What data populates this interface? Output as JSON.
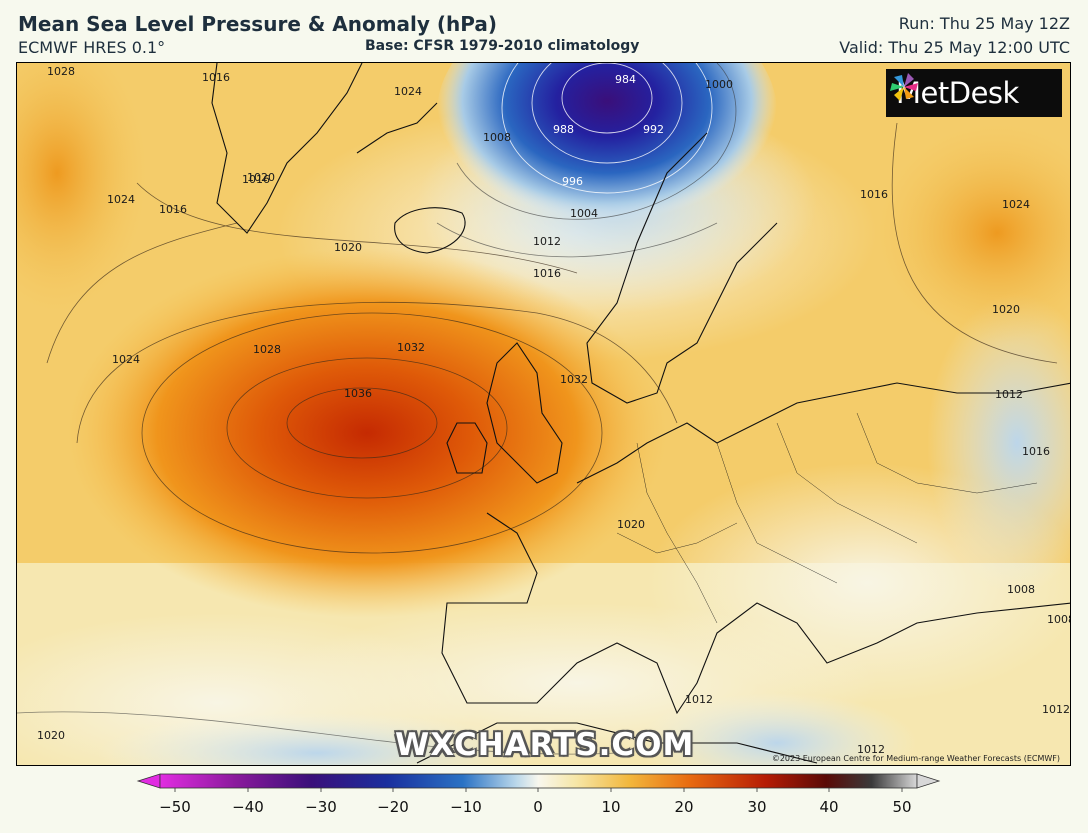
{
  "header": {
    "title": "Mean Sea Level Pressure & Anomaly (hPa)",
    "model": "ECMWF HRES 0.1°",
    "base": "Base: CFSR 1979-2010 climatology",
    "run": "Run: Thu 25 May 12Z",
    "valid": "Valid: Thu 25 May 12:00 UTC"
  },
  "logo": {
    "text": "MetDesk"
  },
  "watermark": "WXCHARTS.COM",
  "copyright": "©2023 European Centre for Medium-range Weather Forecasts (ECMWF)",
  "isobar_labels": [
    "1028",
    "1016",
    "1024",
    "1020",
    "1016",
    "1024",
    "1016",
    "1008",
    "984",
    "1000",
    "988",
    "992",
    "996",
    "1004",
    "1012",
    "1016",
    "1020",
    "1028",
    "1032",
    "1036",
    "1032",
    "1024",
    "1016",
    "1024",
    "1020",
    "1012",
    "1016",
    "1008",
    "1012",
    "1008",
    "1012",
    "1020",
    "1012",
    "1020"
  ],
  "colorbar": {
    "ticks": [
      "−50",
      "−40",
      "−30",
      "−20",
      "−10",
      "0",
      "10",
      "20",
      "30",
      "40",
      "50"
    ],
    "colors": [
      "#d11fd1",
      "#8a1a9c",
      "#3a0f7a",
      "#1a2f9e",
      "#2a72c4",
      "#b9d7ea",
      "#f6edc0",
      "#f2b73c",
      "#e86a10",
      "#b61c05",
      "#5a0a06",
      "#3a3a3a",
      "#d8d8d8"
    ]
  }
}
